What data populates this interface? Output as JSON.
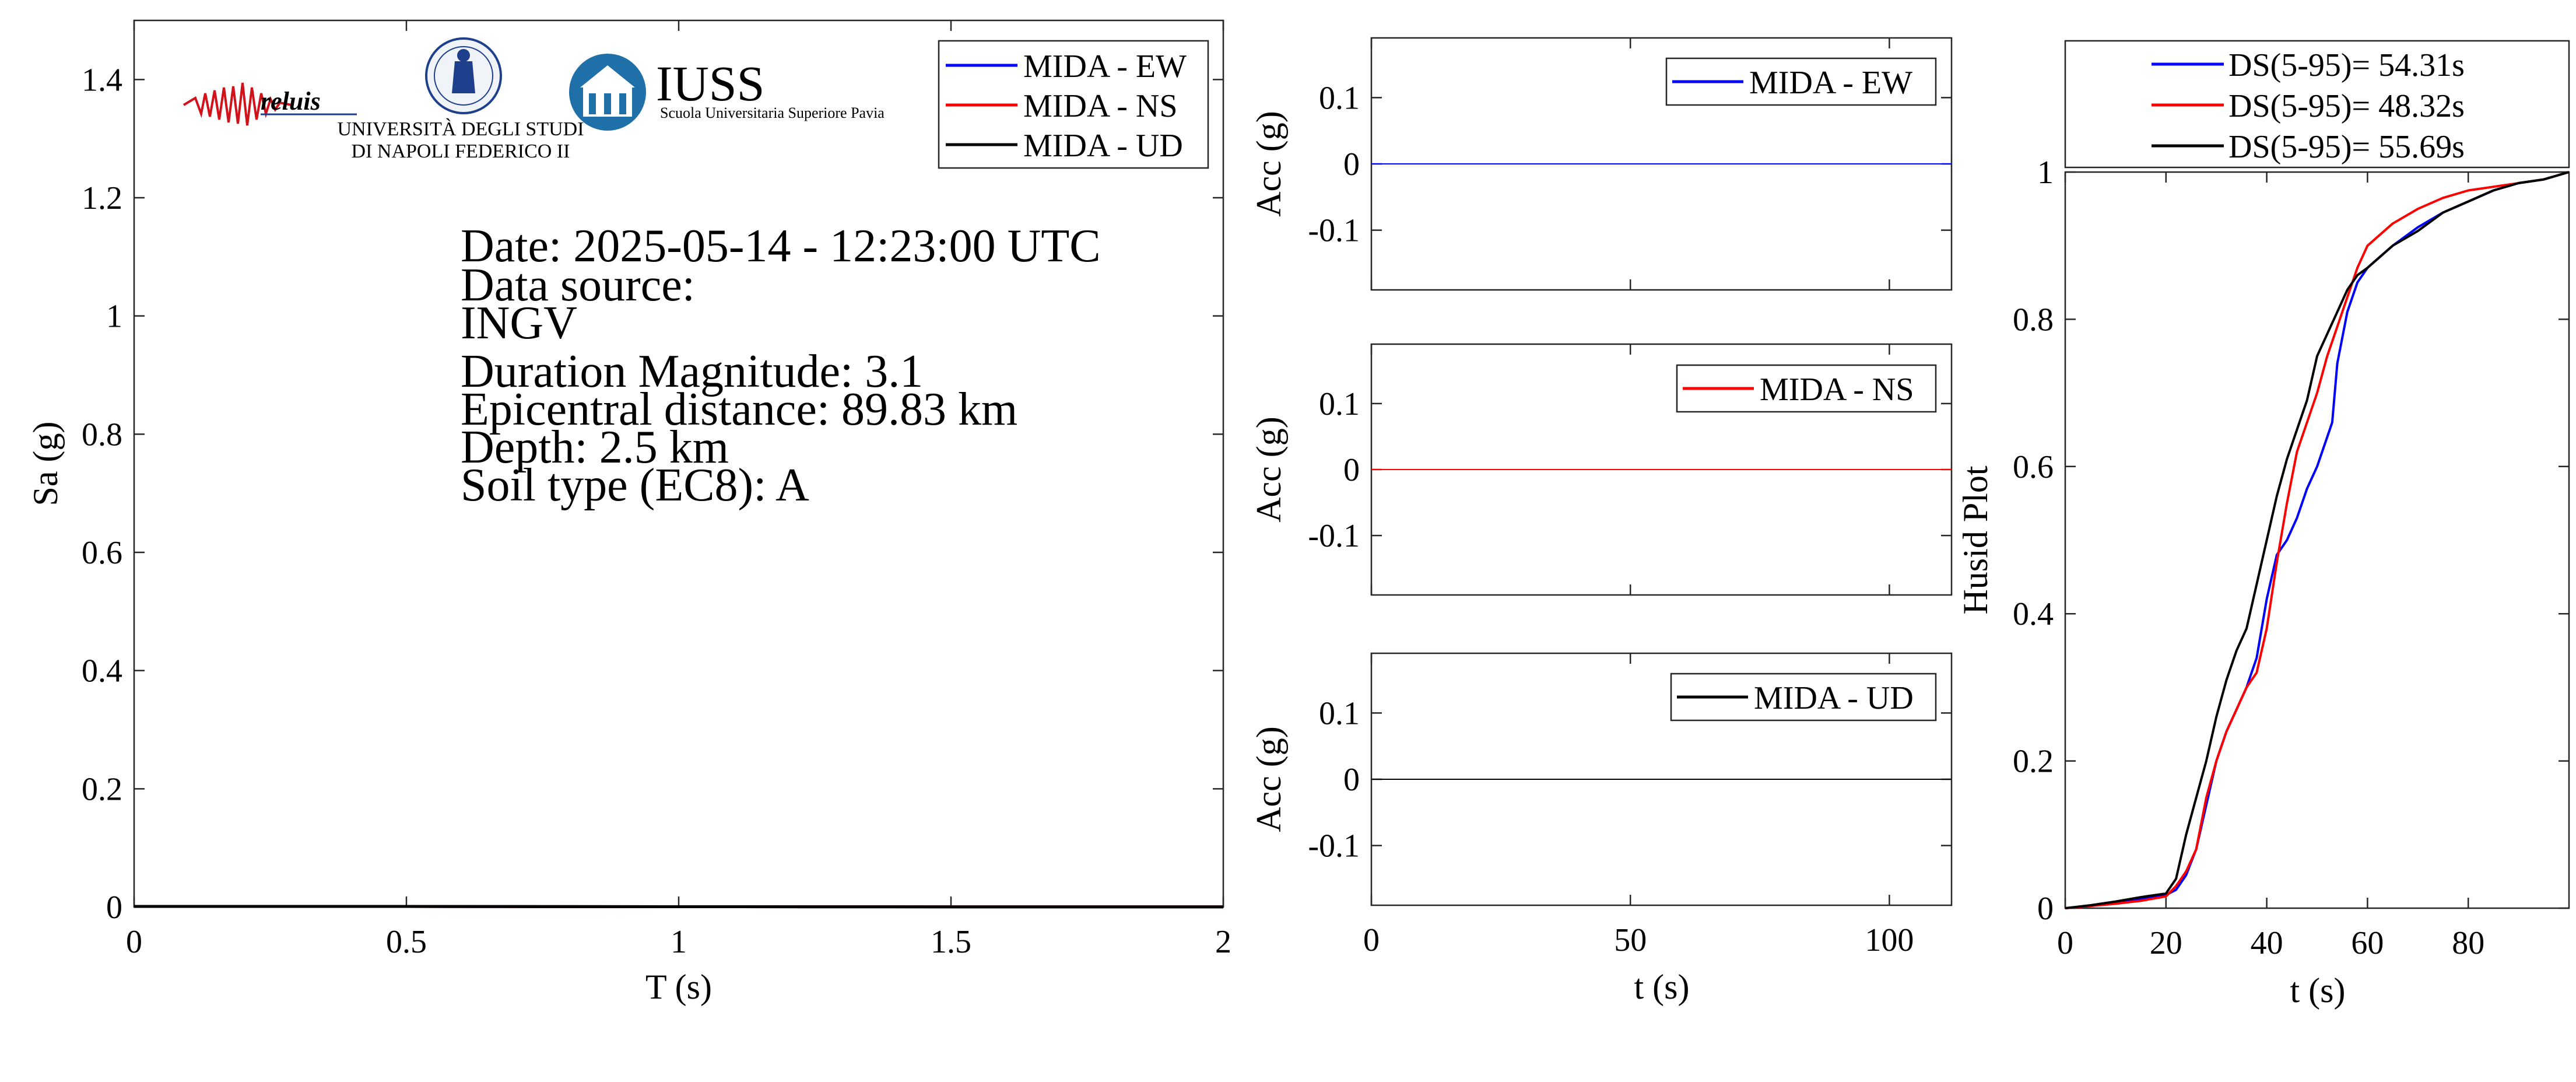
{
  "chart_data": [
    {
      "type": "line",
      "panel": "response-spectrum",
      "xlabel": "T (s)",
      "ylabel": "Sa (g)",
      "xlim": [
        0,
        2
      ],
      "ylim": [
        0,
        1.5
      ],
      "xticks": [
        0,
        0.5,
        1,
        1.5,
        2
      ],
      "xtick_labels": [
        "0",
        "0.5",
        "1",
        "1.5",
        "2"
      ],
      "yticks": [
        0,
        0.2,
        0.4,
        0.6,
        0.8,
        1,
        1.2,
        1.4
      ],
      "ytick_labels": [
        "0",
        "0.2",
        "0.4",
        "0.6",
        "0.8",
        "1",
        "1.2",
        "1.4"
      ],
      "grid": false,
      "legend_position": "top-right",
      "series": [
        {
          "name": "MIDA - EW",
          "color": "#0000ff",
          "x": [
            0,
            0.5,
            1,
            1.5,
            2
          ],
          "y": [
            0.001,
            0.001,
            0.0005,
            0.0003,
            0.0002
          ]
        },
        {
          "name": "MIDA - NS",
          "color": "#ff0000",
          "x": [
            0,
            0.5,
            1,
            1.5,
            2
          ],
          "y": [
            0.001,
            0.001,
            0.0005,
            0.0003,
            0.0002
          ]
        },
        {
          "name": "MIDA - UD",
          "color": "#000000",
          "x": [
            0,
            0.5,
            1,
            1.5,
            2
          ],
          "y": [
            0.001,
            0.001,
            0.0005,
            0.0003,
            0.0002
          ]
        }
      ],
      "annotations": [
        "Date: 2025-05-14 - 12:23:00 UTC",
        "Data source:",
        "INGV",
        "Duration Magnitude: 3.1",
        "Epicentral distance: 89.83 km",
        "Depth: 2.5 km",
        "Soil type (EC8): A"
      ],
      "logos": [
        {
          "name": "reluis",
          "text": "reluis"
        },
        {
          "name": "unina",
          "text_line1": "UNIVERSITÀ DEGLI STUDI",
          "text_line2": "DI NAPOLI FEDERICO II"
        },
        {
          "name": "iuss",
          "text": "IUSS",
          "subtitle": "Scuola Universitaria Superiore Pavia"
        }
      ]
    },
    {
      "type": "line",
      "panel": "accelerogram-ew",
      "ylabel": "Acc (g)",
      "xlim": [
        0,
        112
      ],
      "ylim": [
        -0.19,
        0.19
      ],
      "yticks": [
        -0.1,
        0,
        0.1
      ],
      "ytick_labels": [
        "-0.1",
        "0",
        "0.1"
      ],
      "grid": false,
      "legend_position": "top-right",
      "series": [
        {
          "name": "MIDA - EW",
          "color": "#0000ff",
          "x": [
            0,
            112
          ],
          "y": [
            0,
            0
          ]
        }
      ]
    },
    {
      "type": "line",
      "panel": "accelerogram-ns",
      "ylabel": "Acc (g)",
      "xlim": [
        0,
        112
      ],
      "ylim": [
        -0.19,
        0.19
      ],
      "yticks": [
        -0.1,
        0,
        0.1
      ],
      "ytick_labels": [
        "-0.1",
        "0",
        "0.1"
      ],
      "grid": false,
      "legend_position": "top-right",
      "series": [
        {
          "name": "MIDA - NS",
          "color": "#ff0000",
          "x": [
            0,
            112
          ],
          "y": [
            0,
            0
          ]
        }
      ]
    },
    {
      "type": "line",
      "panel": "accelerogram-ud",
      "xlabel": "t (s)",
      "ylabel": "Acc (g)",
      "xlim": [
        0,
        112
      ],
      "ylim": [
        -0.19,
        0.19
      ],
      "xticks": [
        0,
        50,
        100
      ],
      "xtick_labels": [
        "0",
        "50",
        "100"
      ],
      "yticks": [
        -0.1,
        0,
        0.1
      ],
      "ytick_labels": [
        "-0.1",
        "0",
        "0.1"
      ],
      "grid": false,
      "legend_position": "top-right",
      "series": [
        {
          "name": "MIDA - UD",
          "color": "#000000",
          "x": [
            0,
            112
          ],
          "y": [
            0,
            0
          ]
        }
      ]
    },
    {
      "type": "line",
      "panel": "husid",
      "xlabel": "t (s)",
      "ylabel": "Husid Plot",
      "xlim": [
        0,
        100
      ],
      "ylim": [
        0,
        1
      ],
      "xticks": [
        0,
        20,
        40,
        60,
        80
      ],
      "xtick_labels": [
        "0",
        "20",
        "40",
        "60",
        "80"
      ],
      "yticks": [
        0,
        0.2,
        0.4,
        0.6,
        0.8,
        1
      ],
      "ytick_labels": [
        "0",
        "0.2",
        "0.4",
        "0.6",
        "0.8",
        "1"
      ],
      "grid": false,
      "legend_position": "above",
      "series": [
        {
          "name": "DS(5-95)= 54.31s",
          "color": "#0000ff",
          "x": [
            0,
            5,
            10,
            15,
            20,
            22,
            24,
            26,
            28,
            30,
            32,
            34,
            36,
            38,
            40,
            42,
            44,
            46,
            48,
            50,
            52,
            53,
            54,
            56,
            58,
            60,
            65,
            70,
            75,
            80,
            85,
            90,
            95,
            100
          ],
          "y": [
            0,
            0.003,
            0.007,
            0.012,
            0.018,
            0.025,
            0.045,
            0.08,
            0.14,
            0.2,
            0.24,
            0.27,
            0.3,
            0.34,
            0.42,
            0.48,
            0.5,
            0.53,
            0.57,
            0.6,
            0.64,
            0.66,
            0.74,
            0.81,
            0.85,
            0.87,
            0.9,
            0.925,
            0.945,
            0.96,
            0.975,
            0.985,
            0.99,
            1.0
          ]
        },
        {
          "name": "DS(5-95)= 48.32s",
          "color": "#ff0000",
          "x": [
            0,
            5,
            10,
            15,
            20,
            22,
            24,
            26,
            28,
            30,
            32,
            34,
            36,
            38,
            40,
            42,
            44,
            46,
            48,
            50,
            52,
            54,
            56,
            58,
            60,
            65,
            70,
            75,
            80,
            85,
            90,
            95,
            100
          ],
          "y": [
            0,
            0.003,
            0.006,
            0.01,
            0.016,
            0.03,
            0.05,
            0.08,
            0.15,
            0.2,
            0.24,
            0.27,
            0.3,
            0.32,
            0.38,
            0.47,
            0.55,
            0.62,
            0.66,
            0.7,
            0.75,
            0.79,
            0.83,
            0.87,
            0.9,
            0.93,
            0.95,
            0.965,
            0.975,
            0.98,
            0.985,
            0.99,
            1.0
          ]
        },
        {
          "name": "DS(5-95)= 55.69s",
          "color": "#000000",
          "x": [
            0,
            5,
            10,
            15,
            20,
            22,
            24,
            26,
            28,
            30,
            32,
            34,
            36,
            38,
            40,
            42,
            44,
            46,
            48,
            50,
            52,
            54,
            56,
            58,
            60,
            65,
            70,
            75,
            80,
            85,
            90,
            95,
            100
          ],
          "y": [
            0,
            0.004,
            0.009,
            0.015,
            0.02,
            0.04,
            0.1,
            0.15,
            0.2,
            0.26,
            0.31,
            0.35,
            0.38,
            0.44,
            0.5,
            0.56,
            0.61,
            0.65,
            0.69,
            0.75,
            0.78,
            0.81,
            0.84,
            0.86,
            0.87,
            0.9,
            0.92,
            0.945,
            0.96,
            0.975,
            0.985,
            0.99,
            1.0
          ]
        }
      ]
    }
  ]
}
